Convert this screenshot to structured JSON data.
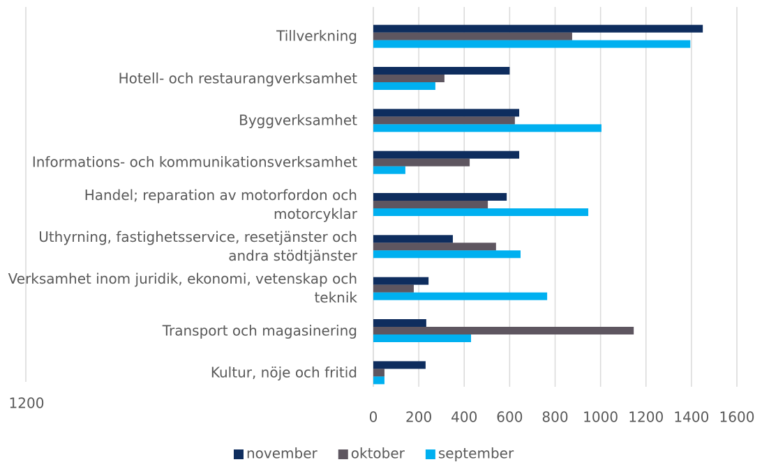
{
  "chart_data": {
    "type": "hbar",
    "annotation": "1200",
    "categories": [
      "Tillverkning",
      "Hotell- och restaurangverksamhet",
      "Byggverksamhet",
      "Informations- och kommunikationsverksamhet",
      "Handel; reparation av motorfordon och motorcyklar",
      "Uthyrning, fastighetsservice, resetjänster och andra stödtjänster",
      "Verksamhet inom juridik, ekonomi, vetenskap och teknik",
      "Transport och magasinering",
      "Kultur, nöje och fritid"
    ],
    "series": [
      {
        "name": "november",
        "color": "#0e2d5e",
        "values": [
          1450,
          600,
          642,
          642,
          587,
          350,
          243,
          233,
          230
        ]
      },
      {
        "name": "oktober",
        "color": "#5e5660",
        "values": [
          875,
          313,
          623,
          424,
          504,
          540,
          178,
          1146,
          49
        ]
      },
      {
        "name": "september",
        "color": "#00b0f0",
        "values": [
          1395,
          273,
          1004,
          141,
          946,
          648,
          765,
          430,
          49
        ]
      }
    ],
    "xlim": [
      0,
      1600
    ],
    "xticks": [
      0,
      200,
      400,
      600,
      800,
      1000,
      1200,
      1400,
      1600
    ],
    "grid": true,
    "legend": "bottom"
  }
}
